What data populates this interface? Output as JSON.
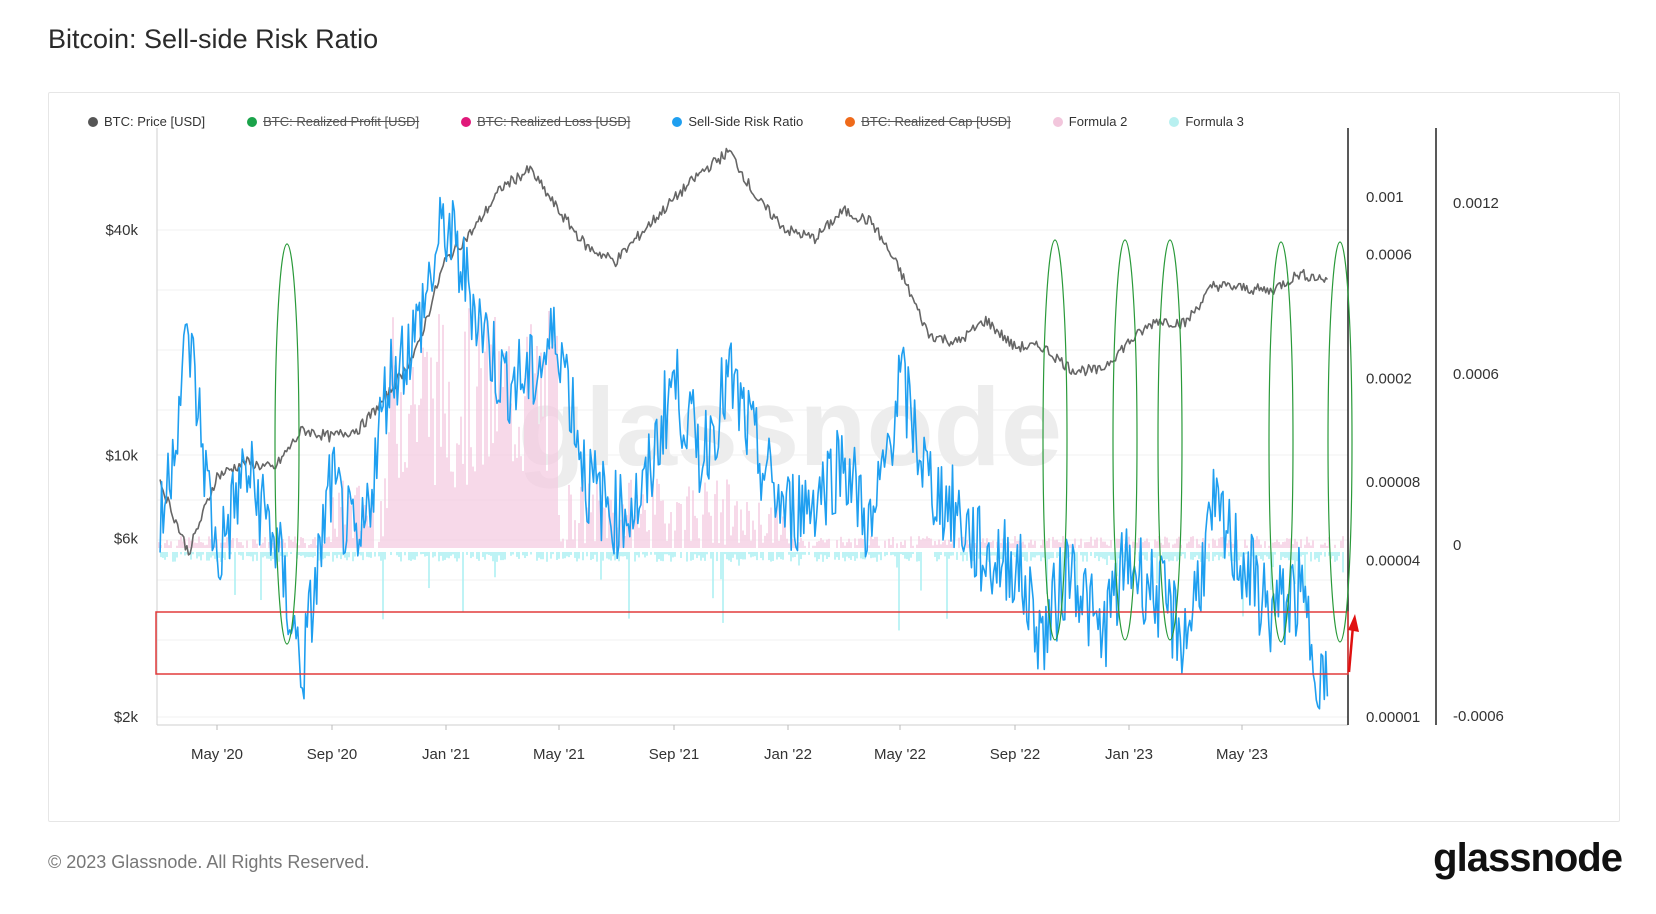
{
  "title": "Bitcoin: Sell-side Risk Ratio",
  "footer": "© 2023 Glassnode. All Rights Reserved.",
  "brand": "glassnode",
  "watermark": "glassnode",
  "legend": [
    {
      "label": "BTC: Price [USD]",
      "color": "#555555",
      "active": true
    },
    {
      "label": "BTC: Realized Profit [USD]",
      "color": "#1aa34a",
      "active": false
    },
    {
      "label": "BTC: Realized Loss [USD]",
      "color": "#e0197a",
      "active": false
    },
    {
      "label": "Sell-Side Risk Ratio",
      "color": "#1f9ff0",
      "active": true
    },
    {
      "label": "BTC: Realized Cap [USD]",
      "color": "#ef6a1a",
      "active": false
    },
    {
      "label": "Formula 2",
      "color": "#f2c6dc",
      "active": true
    },
    {
      "label": "Formula 3",
      "color": "#b8f0f0",
      "active": true
    }
  ],
  "chart_data": {
    "type": "line",
    "title": "Bitcoin: Sell-side Risk Ratio",
    "x_ticks": [
      "May '20",
      "Sep '20",
      "Jan '21",
      "May '21",
      "Sep '21",
      "Jan '22",
      "May '22",
      "Sep '22",
      "Jan '23",
      "May '23"
    ],
    "y_left_ticks": [
      {
        "label": "$40k",
        "value": 40000
      },
      {
        "label": "$10k",
        "value": 10000
      },
      {
        "label": "$6k",
        "value": 6000
      },
      {
        "label": "$2k",
        "value": 2000
      }
    ],
    "y_right1_ticks": [
      {
        "label": "0.001",
        "value": 0.001
      },
      {
        "label": "0.0006",
        "value": 0.0006
      },
      {
        "label": "0.0002",
        "value": 0.0002
      },
      {
        "label": "0.00008",
        "value": 8e-05
      },
      {
        "label": "0.00004",
        "value": 4e-05
      },
      {
        "label": "0.00001",
        "value": 1e-05
      }
    ],
    "y_right2_ticks": [
      {
        "label": "0.0012",
        "value": 0.0012
      },
      {
        "label": "0.0006",
        "value": 0.0006
      },
      {
        "label": "0",
        "value": 0
      },
      {
        "label": "-0.0006",
        "value": -0.0006
      }
    ],
    "y_left_scale": "log",
    "y_right1_scale": "log",
    "series": [
      {
        "name": "BTC: Price [USD]",
        "color": "#555555",
        "x": [
          "2020-03",
          "2020-04",
          "2020-05",
          "2020-06",
          "2020-07",
          "2020-08",
          "2020-09",
          "2020-10",
          "2020-11",
          "2020-12",
          "2021-01",
          "2021-02",
          "2021-03",
          "2021-04",
          "2021-05",
          "2021-06",
          "2021-07",
          "2021-08",
          "2021-09",
          "2021-10",
          "2021-11",
          "2021-12",
          "2022-01",
          "2022-02",
          "2022-03",
          "2022-04",
          "2022-05",
          "2022-06",
          "2022-07",
          "2022-08",
          "2022-09",
          "2022-10",
          "2022-11",
          "2022-12",
          "2023-01",
          "2023-02",
          "2023-03",
          "2023-04",
          "2023-05",
          "2023-06",
          "2023-07",
          "2023-08"
        ],
        "values": [
          8500,
          5500,
          8800,
          9600,
          9200,
          11700,
          11200,
          11800,
          14500,
          19000,
          33000,
          40000,
          52000,
          58000,
          45000,
          36000,
          33000,
          40000,
          48000,
          57000,
          65000,
          48000,
          40000,
          38000,
          45000,
          42000,
          31000,
          21000,
          20000,
          23000,
          19500,
          19500,
          17000,
          16800,
          20000,
          23000,
          22500,
          28500,
          28000,
          27500,
          30500,
          29500
        ]
      },
      {
        "name": "Sell-Side Risk Ratio",
        "color": "#1f9ff0",
        "x": [
          "2020-03",
          "2020-04",
          "2020-05",
          "2020-06",
          "2020-07",
          "2020-08",
          "2020-09",
          "2020-10",
          "2020-11",
          "2020-12",
          "2021-01",
          "2021-02",
          "2021-03",
          "2021-04",
          "2021-05",
          "2021-06",
          "2021-07",
          "2021-08",
          "2021-09",
          "2021-10",
          "2021-11",
          "2021-12",
          "2022-01",
          "2022-02",
          "2022-03",
          "2022-04",
          "2022-05",
          "2022-06",
          "2022-07",
          "2022-08",
          "2022-09",
          "2022-10",
          "2022-11",
          "2022-12",
          "2023-01",
          "2023-02",
          "2023-03",
          "2023-04",
          "2023-05",
          "2023-06",
          "2023-07",
          "2023-08"
        ],
        "values": [
          5e-05,
          0.0003,
          4e-05,
          9e-05,
          5e-05,
          1.5e-05,
          8e-05,
          4e-05,
          0.0002,
          0.0003,
          0.0008,
          0.0004,
          0.0002,
          0.0002,
          0.0003,
          8e-05,
          6e-05,
          7e-05,
          0.0002,
          0.0001,
          0.0002,
          0.0001,
          6e-05,
          7e-05,
          0.0001,
          5e-05,
          0.0002,
          8e-05,
          6e-05,
          4e-05,
          4e-05,
          2e-05,
          4e-05,
          2e-05,
          4e-05,
          3e-05,
          2e-05,
          6e-05,
          4e-05,
          2.5e-05,
          3e-05,
          1.2e-05
        ]
      }
    ],
    "annotations": [
      "green ellipses marking local lows of Sell-Side Risk Ratio",
      "red rectangle highlighting the low-ratio zone",
      "red arrow at the latest value"
    ]
  }
}
